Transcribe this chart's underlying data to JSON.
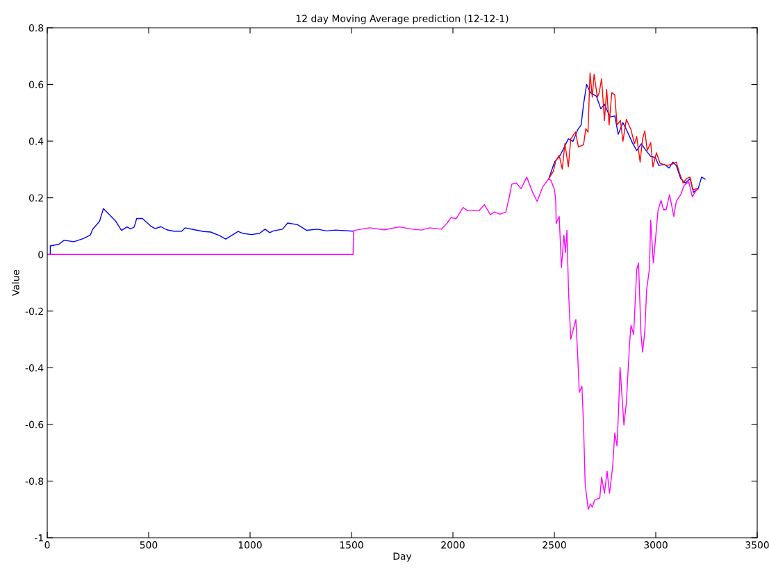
{
  "chart_data": {
    "type": "line",
    "title": "12 day Moving Average prediction (12-12-1)",
    "xlabel": "Day",
    "ylabel": "Value",
    "xlim": [
      0,
      3500
    ],
    "xticks": [
      0,
      500,
      1000,
      1500,
      2000,
      2500,
      3000,
      3500
    ],
    "ylim": [
      -1,
      0.8
    ],
    "yticks": [
      -1,
      -0.8,
      -0.6,
      -0.4,
      -0.2,
      0,
      0.2,
      0.4,
      0.6,
      0.8
    ],
    "grid": false,
    "marker": "none",
    "line_style": "solid",
    "series": [
      {
        "color": "#0000ff",
        "x": [
          15,
          15,
          58,
          83,
          132,
          178,
          212,
          224,
          258,
          277,
          304,
          338,
          366,
          393,
          412,
          429,
          441,
          469,
          509,
          532,
          560,
          589,
          623,
          663,
          680,
          726,
          772,
          806,
          851,
          880,
          909,
          941,
          966,
          1006,
          1046,
          1074,
          1097,
          1114,
          1160,
          1185,
          1234,
          1279,
          1331,
          1377,
          1422,
          1508,
          1514,
          1588,
          1662,
          1736,
          1799,
          1845,
          1885,
          1942,
          1970,
          1991,
          2016,
          2050,
          2073,
          2102,
          2128,
          2155,
          2185,
          2204,
          2233,
          2261,
          2278,
          2290,
          2313,
          2336,
          2364,
          2393,
          2415,
          2444,
          2473,
          2501,
          2529,
          2569,
          2592,
          2615,
          2632,
          2644,
          2659,
          2678,
          2707,
          2729,
          2747,
          2775,
          2798,
          2815,
          2838,
          2861,
          2884,
          2906,
          2929,
          2952,
          2975,
          2998,
          3015,
          3043,
          3066,
          3084,
          3101,
          3123,
          3146,
          3169,
          3186,
          3209,
          3226,
          3243
        ],
        "values": [
          0,
          0.03,
          0.036,
          0.05,
          0.045,
          0.056,
          0.068,
          0.089,
          0.117,
          0.162,
          0.142,
          0.117,
          0.085,
          0.097,
          0.09,
          0.097,
          0.127,
          0.127,
          0.101,
          0.091,
          0.098,
          0.087,
          0.082,
          0.082,
          0.094,
          0.087,
          0.081,
          0.079,
          0.066,
          0.054,
          0.067,
          0.081,
          0.074,
          0.07,
          0.074,
          0.089,
          0.077,
          0.083,
          0.089,
          0.111,
          0.105,
          0.085,
          0.089,
          0.083,
          0.086,
          0.082,
          null,
          null,
          null,
          null,
          null,
          null,
          null,
          null,
          null,
          null,
          null,
          null,
          null,
          null,
          null,
          null,
          null,
          null,
          null,
          null,
          null,
          null,
          null,
          null,
          null,
          null,
          null,
          null,
          0.268,
          0.326,
          0.35,
          0.408,
          0.399,
          0.44,
          0.457,
          0.53,
          0.6,
          0.571,
          0.559,
          0.514,
          0.53,
          0.485,
          0.489,
          0.424,
          0.465,
          0.432,
          0.395,
          0.367,
          0.391,
          0.367,
          0.346,
          0.342,
          0.314,
          0.318,
          0.305,
          0.326,
          0.314,
          0.268,
          0.252,
          0.268,
          0.219,
          0.232,
          0.273,
          0.266
        ]
      },
      {
        "color": "#ff0000",
        "x": [
          2473,
          2495,
          2507,
          2524,
          2539,
          2552,
          2569,
          2581,
          2604,
          2619,
          2644,
          2655,
          2666,
          2676,
          2687,
          2696,
          2712,
          2721,
          2733,
          2747,
          2758,
          2770,
          2783,
          2798,
          2809,
          2826,
          2838,
          2855,
          2878,
          2895,
          2906,
          2923,
          2935,
          2946,
          2958,
          2975,
          2986,
          3003,
          3021,
          3055,
          3078,
          3101,
          3118,
          3135,
          3152,
          3169,
          3183,
          3203
        ],
        "values": [
          0.268,
          0.293,
          0.33,
          0.35,
          0.301,
          0.391,
          0.309,
          0.408,
          0.432,
          0.379,
          0.387,
          0.444,
          0.432,
          0.641,
          0.555,
          0.636,
          0.555,
          0.571,
          0.62,
          0.473,
          0.583,
          0.457,
          0.571,
          0.563,
          0.457,
          0.473,
          0.399,
          0.477,
          0.44,
          0.391,
          0.416,
          0.326,
          0.408,
          0.436,
          0.367,
          0.395,
          0.309,
          0.359,
          0.322,
          0.314,
          0.318,
          0.326,
          0.285,
          0.252,
          0.268,
          0.273,
          0.228,
          0.232
        ]
      },
      {
        "color": "#ff00ff",
        "x": [
          0,
          1508,
          1510,
          1514,
          1588,
          1662,
          1736,
          1799,
          1845,
          1885,
          1942,
          1970,
          1991,
          2016,
          2050,
          2073,
          2102,
          2128,
          2155,
          2185,
          2204,
          2233,
          2261,
          2278,
          2290,
          2313,
          2336,
          2364,
          2393,
          2415,
          2444,
          2473,
          2484,
          2501,
          2507,
          2509,
          2524,
          2535,
          2547,
          2555,
          2562,
          2570,
          2581,
          2606,
          2615,
          2623,
          2636,
          2644,
          2652,
          2667,
          2678,
          2687,
          2699,
          2724,
          2733,
          2747,
          2760,
          2772,
          2787,
          2798,
          2809,
          2817,
          2824,
          2843,
          2855,
          2870,
          2878,
          2891,
          2906,
          2915,
          2927,
          2935,
          2946,
          2955,
          2969,
          2975,
          2988,
          2999,
          3011,
          3026,
          3038,
          3051,
          3068,
          3089,
          3101,
          3123,
          3140,
          3163,
          3180,
          3197,
          3210
        ],
        "values": [
          0,
          0,
          0.082,
          0.085,
          0.094,
          0.087,
          0.097,
          0.089,
          0.086,
          0.094,
          0.089,
          0.109,
          0.13,
          0.126,
          0.166,
          0.154,
          0.156,
          0.154,
          0.176,
          0.14,
          0.15,
          0.142,
          0.15,
          0.203,
          0.248,
          0.252,
          0.232,
          0.273,
          0.219,
          0.187,
          0.24,
          0.268,
          0.26,
          0.228,
          0.187,
          0.109,
          0.134,
          -0.046,
          0.068,
          0.007,
          0.085,
          -0.132,
          -0.299,
          -0.23,
          -0.353,
          -0.487,
          -0.465,
          -0.606,
          -0.81,
          -0.9,
          -0.88,
          -0.892,
          -0.866,
          -0.86,
          -0.786,
          -0.843,
          -0.765,
          -0.843,
          -0.753,
          -0.63,
          -0.676,
          -0.541,
          -0.398,
          -0.602,
          -0.524,
          -0.324,
          -0.25,
          -0.283,
          -0.054,
          -0.03,
          -0.279,
          -0.345,
          -0.271,
          -0.124,
          -0.05,
          0.121,
          -0.03,
          0.056,
          0.154,
          0.191,
          0.158,
          0.158,
          0.211,
          0.134,
          0.187,
          0.211,
          0.244,
          0.256,
          0.203,
          0.224,
          0.232
        ]
      }
    ]
  }
}
